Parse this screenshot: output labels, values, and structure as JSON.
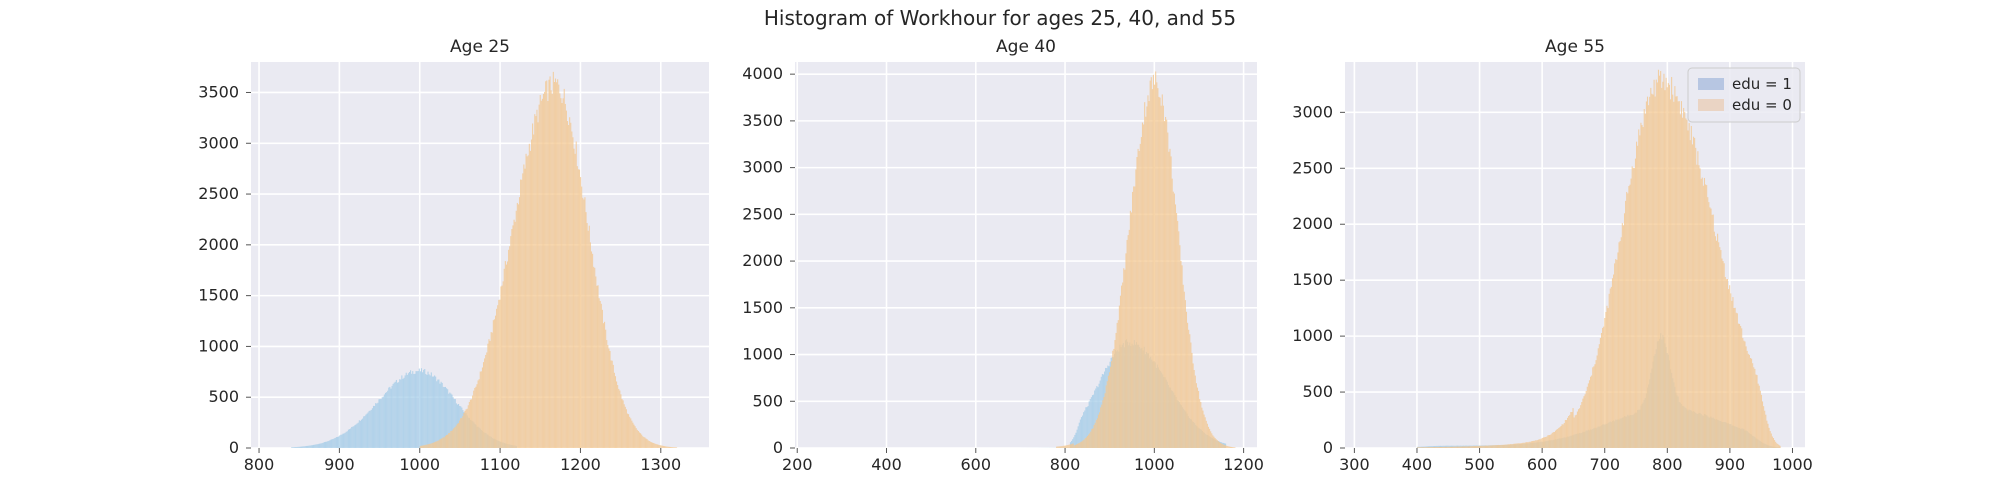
{
  "figure": {
    "suptitle": "Histogram of Workhour for ages 25, 40, and 55"
  },
  "legend": {
    "placement": "top-right of third panel",
    "items": [
      {
        "label": "edu = 1",
        "color": "#b7c6e2"
      },
      {
        "label": "edu = 0",
        "color": "#ead4c4"
      }
    ]
  },
  "colors": {
    "edu1_fill": "#a6cde8",
    "edu0_fill": "#f3c893",
    "background": "#eaeaf2",
    "grid": "#ffffff"
  },
  "chart_data": [
    {
      "type": "histogram",
      "title": "Age 25",
      "xlim": [
        790,
        1360
      ],
      "ylim": [
        0,
        3800
      ],
      "xticks": [
        800,
        900,
        1000,
        1100,
        1200,
        1300
      ],
      "yticks": [
        0,
        500,
        1000,
        1500,
        2000,
        2500,
        3000,
        3500
      ],
      "grid": true,
      "series": [
        {
          "label_ref": "edu = 1",
          "peak_x": 1000,
          "peak_y": 760,
          "x_range": [
            840,
            1120
          ]
        },
        {
          "label_ref": "edu = 0",
          "peak_x": 1170,
          "peak_y": 3580,
          "x_range": [
            1000,
            1320
          ]
        }
      ]
    },
    {
      "type": "histogram",
      "title": "Age 40",
      "xlim": [
        195,
        1230
      ],
      "ylim": [
        0,
        4130
      ],
      "xticks": [
        200,
        400,
        600,
        800,
        1000,
        1200
      ],
      "yticks": [
        0,
        500,
        1000,
        1500,
        2000,
        2500,
        3000,
        3500,
        4000
      ],
      "grid": true,
      "series": [
        {
          "label_ref": "edu = 1",
          "peak_x": 950,
          "peak_y": 1130,
          "x_range": [
            700,
            1160
          ]
        },
        {
          "label_ref": "edu = 0",
          "peak_x": 1000,
          "peak_y": 3920,
          "x_range": [
            780,
            1180
          ]
        }
      ]
    },
    {
      "type": "histogram",
      "title": "Age 55",
      "xlim": [
        285,
        1020
      ],
      "ylim": [
        0,
        3450
      ],
      "xticks": [
        300,
        400,
        500,
        600,
        700,
        800,
        900,
        1000
      ],
      "yticks": [
        0,
        500,
        1000,
        1500,
        2000,
        2500,
        3000
      ],
      "grid": true,
      "series": [
        {
          "label_ref": "edu = 1",
          "peak_x": 790,
          "peak_y": 1000,
          "x_range": [
            400,
            980
          ]
        },
        {
          "label_ref": "edu = 0",
          "peak_x": 790,
          "peak_y": 3280,
          "x_range": [
            400,
            980
          ]
        }
      ]
    }
  ]
}
